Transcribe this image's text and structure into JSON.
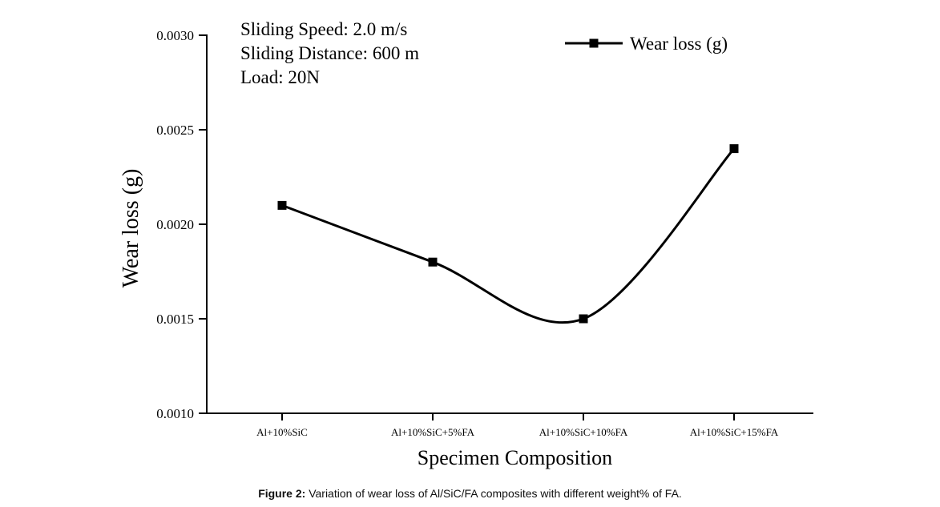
{
  "chart_data": {
    "type": "line",
    "title": "",
    "xlabel": "Specimen Composition",
    "ylabel": "Wear loss (g)",
    "categories": [
      "Al+10%SiC",
      "Al+10%SiC+5%FA",
      "Al+10%SiC+10%FA",
      "Al+10%SiC+15%FA"
    ],
    "series": [
      {
        "name": "Wear loss (g)",
        "values": [
          0.0021,
          0.0018,
          0.0015,
          0.0024
        ]
      }
    ],
    "ylim": [
      0.001,
      0.003
    ],
    "yticks": [
      "0.0010",
      "0.0015",
      "0.0020",
      "0.0025",
      "0.0030"
    ],
    "legend_position": "top-right",
    "grid": false,
    "annotations": [
      "Sliding Speed: 2.0 m/s",
      "Sliding Distance: 600 m",
      "Load: 20N"
    ],
    "line_color": "#000000"
  },
  "caption": {
    "label": "Figure 2:",
    "text": " Variation of wear loss of Al/SiC/FA composites with different weight% of FA."
  }
}
